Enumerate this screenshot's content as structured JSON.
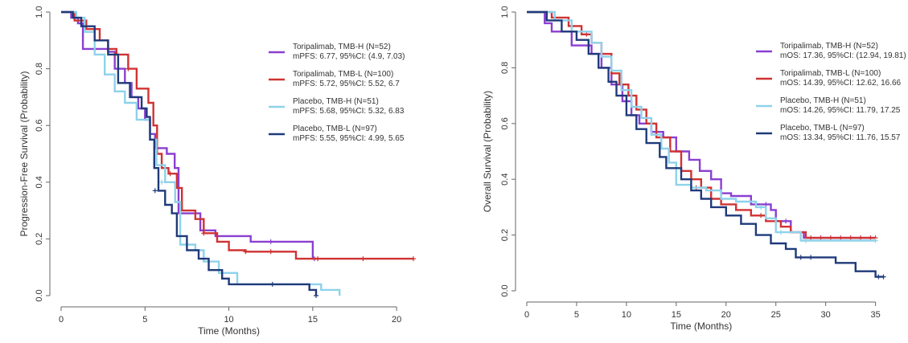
{
  "chart_data": [
    {
      "type": "line",
      "subtype": "kaplan-meier",
      "title": "",
      "xlabel": "Time (Months)",
      "ylabel": "Progression-Free Survival (Probability)",
      "xlim": [
        0,
        21
      ],
      "ylim": [
        0,
        1
      ],
      "xticks": [
        0,
        5,
        10,
        15,
        20
      ],
      "yticks": [
        0.0,
        0.2,
        0.4,
        0.6,
        0.8,
        1.0
      ],
      "xtick_labels": [
        "0",
        "5",
        "10",
        "15",
        "20"
      ],
      "ytick_labels": [
        "0.0",
        "0.2",
        "0.4",
        "0.6",
        "0.8",
        "1.0"
      ],
      "legend_position": "right",
      "series": [
        {
          "name": "Toripalimab, TMB-H (N=52)",
          "stat": "mPFS: 6.77, 95%CI: (4.9, 7.03)",
          "color": "#8a3fd1",
          "steps": [
            [
              0,
              1.0
            ],
            [
              0.6,
              0.98
            ],
            [
              1.0,
              0.96
            ],
            [
              1.3,
              0.87
            ],
            [
              2.8,
              0.86
            ],
            [
              3.2,
              0.8
            ],
            [
              3.8,
              0.75
            ],
            [
              4.2,
              0.7
            ],
            [
              4.6,
              0.66
            ],
            [
              5.0,
              0.62
            ],
            [
              5.3,
              0.57
            ],
            [
              5.6,
              0.52
            ],
            [
              6.3,
              0.5
            ],
            [
              6.77,
              0.45
            ],
            [
              7.0,
              0.29
            ],
            [
              8.3,
              0.23
            ],
            [
              9.2,
              0.21
            ],
            [
              11.3,
              0.19
            ],
            [
              15.0,
              0.13
            ],
            [
              15.2,
              0.13
            ]
          ],
          "censors": [
            [
              12.5,
              0.19
            ],
            [
              15.1,
              0.13
            ]
          ]
        },
        {
          "name": "Toripalimab, TMB-L (N=100)",
          "stat": "mPFS: 5.72, 95%CI: 5.52, 6.7",
          "color": "#d03232",
          "steps": [
            [
              0,
              1.0
            ],
            [
              0.8,
              0.97
            ],
            [
              1.5,
              0.94
            ],
            [
              2.3,
              0.9
            ],
            [
              2.8,
              0.87
            ],
            [
              3.3,
              0.85
            ],
            [
              4.0,
              0.8
            ],
            [
              4.5,
              0.73
            ],
            [
              5.2,
              0.68
            ],
            [
              5.5,
              0.6
            ],
            [
              5.72,
              0.5
            ],
            [
              6.0,
              0.45
            ],
            [
              6.4,
              0.43
            ],
            [
              6.9,
              0.38
            ],
            [
              7.2,
              0.3
            ],
            [
              8.0,
              0.27
            ],
            [
              8.5,
              0.22
            ],
            [
              9.3,
              0.19
            ],
            [
              10.0,
              0.16
            ],
            [
              11.0,
              0.155
            ],
            [
              14.0,
              0.13
            ],
            [
              21.0,
              0.13
            ]
          ],
          "censors": [
            [
              3.2,
              0.85
            ],
            [
              4.0,
              0.8
            ],
            [
              6.5,
              0.43
            ],
            [
              8.5,
              0.22
            ],
            [
              11.0,
              0.155
            ],
            [
              12.5,
              0.155
            ],
            [
              15.3,
              0.13
            ],
            [
              18.0,
              0.13
            ],
            [
              21.0,
              0.13
            ]
          ]
        },
        {
          "name": "Placebo, TMB-H (N=51)",
          "stat": "mPFS: 5.68, 95%CI: 5.32, 6.83",
          "color": "#8ed2ea",
          "steps": [
            [
              0,
              1.0
            ],
            [
              0.9,
              0.98
            ],
            [
              1.4,
              0.93
            ],
            [
              2.0,
              0.85
            ],
            [
              2.6,
              0.78
            ],
            [
              3.2,
              0.72
            ],
            [
              3.8,
              0.68
            ],
            [
              4.5,
              0.62
            ],
            [
              5.3,
              0.55
            ],
            [
              5.68,
              0.46
            ],
            [
              6.2,
              0.4
            ],
            [
              6.8,
              0.33
            ],
            [
              7.1,
              0.18
            ],
            [
              8.0,
              0.16
            ],
            [
              8.5,
              0.12
            ],
            [
              9.4,
              0.08
            ],
            [
              10.5,
              0.04
            ],
            [
              12.0,
              0.04
            ],
            [
              15.5,
              0.02
            ],
            [
              16.6,
              0.0
            ]
          ],
          "censors": [
            [
              6.0,
              0.4
            ]
          ]
        },
        {
          "name": "Placebo, TMB-L (N=97)",
          "stat": "mPFS: 5.55, 95%CI: 4.99, 5.65",
          "color": "#1f3a7a",
          "steps": [
            [
              0,
              1.0
            ],
            [
              0.7,
              0.98
            ],
            [
              1.2,
              0.95
            ],
            [
              2.0,
              0.9
            ],
            [
              2.8,
              0.85
            ],
            [
              3.4,
              0.75
            ],
            [
              4.1,
              0.7
            ],
            [
              4.8,
              0.66
            ],
            [
              5.1,
              0.63
            ],
            [
              5.3,
              0.55
            ],
            [
              5.55,
              0.45
            ],
            [
              5.8,
              0.37
            ],
            [
              6.2,
              0.32
            ],
            [
              6.6,
              0.29
            ],
            [
              6.9,
              0.21
            ],
            [
              7.5,
              0.16
            ],
            [
              8.2,
              0.13
            ],
            [
              8.8,
              0.09
            ],
            [
              9.6,
              0.06
            ],
            [
              10.0,
              0.04
            ],
            [
              12.5,
              0.04
            ],
            [
              14.8,
              0.02
            ],
            [
              15.2,
              0.0
            ]
          ],
          "censors": [
            [
              5.6,
              0.37
            ],
            [
              12.6,
              0.04
            ],
            [
              15.2,
              0.0
            ]
          ]
        }
      ]
    },
    {
      "type": "line",
      "subtype": "kaplan-meier",
      "title": "",
      "xlabel": "Time (Months)",
      "ylabel": "Overall Survival (Probability)",
      "xlim": [
        0,
        36
      ],
      "ylim": [
        0,
        1
      ],
      "xticks": [
        0,
        5,
        10,
        15,
        20,
        25,
        30,
        35
      ],
      "yticks": [
        0.0,
        0.2,
        0.4,
        0.6,
        0.8,
        1.0
      ],
      "xtick_labels": [
        "0",
        "5",
        "10",
        "15",
        "20",
        "25",
        "30",
        "35"
      ],
      "ytick_labels": [
        "0.0",
        "0.2",
        "0.4",
        "0.6",
        "0.8",
        "1.0"
      ],
      "legend_position": "right",
      "series": [
        {
          "name": "Toripalimab, TMB-H (N=52)",
          "stat": "mOS: 17.36, 95%CI: (12.94, 19.81)",
          "color": "#8a3fd1",
          "steps": [
            [
              0,
              1.0
            ],
            [
              1.8,
              0.96
            ],
            [
              2.5,
              0.93
            ],
            [
              4.5,
              0.88
            ],
            [
              6.5,
              0.85
            ],
            [
              7.5,
              0.8
            ],
            [
              8.5,
              0.74
            ],
            [
              9.6,
              0.68
            ],
            [
              10.5,
              0.63
            ],
            [
              11.3,
              0.6
            ],
            [
              12.5,
              0.57
            ],
            [
              13.7,
              0.55
            ],
            [
              15.0,
              0.5
            ],
            [
              16.3,
              0.47
            ],
            [
              17.36,
              0.43
            ],
            [
              18.5,
              0.4
            ],
            [
              19.5,
              0.35
            ],
            [
              20.5,
              0.34
            ],
            [
              22.5,
              0.31
            ],
            [
              24.5,
              0.29
            ],
            [
              25.0,
              0.25
            ],
            [
              26.5,
              0.21
            ],
            [
              27.8,
              0.19
            ],
            [
              35.0,
              0.19
            ]
          ],
          "censors": [
            [
              23.0,
              0.31
            ],
            [
              24.0,
              0.31
            ],
            [
              26.0,
              0.25
            ]
          ]
        },
        {
          "name": "Toripalimab, TMB-L (N=100)",
          "stat": "mOS: 14.39, 95%CI: 12.62, 16.66",
          "color": "#d03232",
          "steps": [
            [
              0,
              1.0
            ],
            [
              2.5,
              0.98
            ],
            [
              4.2,
              0.95
            ],
            [
              5.5,
              0.92
            ],
            [
              6.5,
              0.89
            ],
            [
              7.5,
              0.85
            ],
            [
              8.5,
              0.78
            ],
            [
              9.3,
              0.74
            ],
            [
              10.2,
              0.7
            ],
            [
              11.0,
              0.65
            ],
            [
              12.0,
              0.6
            ],
            [
              13.0,
              0.55
            ],
            [
              14.39,
              0.5
            ],
            [
              15.5,
              0.43
            ],
            [
              16.5,
              0.4
            ],
            [
              17.5,
              0.37
            ],
            [
              18.5,
              0.33
            ],
            [
              19.5,
              0.31
            ],
            [
              21.0,
              0.29
            ],
            [
              22.5,
              0.27
            ],
            [
              24.0,
              0.25
            ],
            [
              25.5,
              0.23
            ],
            [
              26.5,
              0.21
            ],
            [
              28.0,
              0.19
            ],
            [
              35.0,
              0.19
            ]
          ],
          "censors": [
            [
              6.0,
              0.92
            ],
            [
              17.0,
              0.37
            ],
            [
              23.5,
              0.27
            ],
            [
              25.0,
              0.25
            ],
            [
              28.5,
              0.19
            ],
            [
              29.5,
              0.19
            ],
            [
              30.5,
              0.19
            ],
            [
              31.5,
              0.19
            ],
            [
              32.5,
              0.19
            ],
            [
              33.5,
              0.19
            ],
            [
              34.5,
              0.19
            ],
            [
              35.0,
              0.19
            ]
          ]
        },
        {
          "name": "Placebo, TMB-H (N=51)",
          "stat": "mOS: 14.26, 95%CI: 11.79, 17.25",
          "color": "#8ed2ea",
          "steps": [
            [
              0,
              1.0
            ],
            [
              2.8,
              0.97
            ],
            [
              4.5,
              0.93
            ],
            [
              6.5,
              0.89
            ],
            [
              7.5,
              0.84
            ],
            [
              8.5,
              0.79
            ],
            [
              9.5,
              0.72
            ],
            [
              10.5,
              0.66
            ],
            [
              11.5,
              0.62
            ],
            [
              12.5,
              0.56
            ],
            [
              13.5,
              0.51
            ],
            [
              14.26,
              0.46
            ],
            [
              15.0,
              0.38
            ],
            [
              16.5,
              0.37
            ],
            [
              18.0,
              0.36
            ],
            [
              19.5,
              0.33
            ],
            [
              21.0,
              0.32
            ],
            [
              23.0,
              0.3
            ],
            [
              24.0,
              0.26
            ],
            [
              25.0,
              0.21
            ],
            [
              27.5,
              0.18
            ],
            [
              35.0,
              0.18
            ]
          ],
          "censors": [
            [
              23.5,
              0.3
            ],
            [
              25.5,
              0.21
            ],
            [
              28.0,
              0.18
            ],
            [
              35.0,
              0.18
            ]
          ]
        },
        {
          "name": "Placebo, TMB-L (N=97)",
          "stat": "mOS: 13.34, 95%CI: 11.76, 15.57",
          "color": "#1f3a7a",
          "steps": [
            [
              0,
              1.0
            ],
            [
              2.0,
              0.97
            ],
            [
              3.5,
              0.93
            ],
            [
              5.0,
              0.9
            ],
            [
              6.2,
              0.85
            ],
            [
              7.2,
              0.8
            ],
            [
              8.2,
              0.75
            ],
            [
              9.0,
              0.7
            ],
            [
              10.0,
              0.63
            ],
            [
              11.0,
              0.58
            ],
            [
              12.0,
              0.53
            ],
            [
              13.34,
              0.48
            ],
            [
              14.0,
              0.44
            ],
            [
              15.5,
              0.4
            ],
            [
              16.5,
              0.36
            ],
            [
              17.5,
              0.33
            ],
            [
              18.5,
              0.3
            ],
            [
              20.0,
              0.27
            ],
            [
              21.5,
              0.24
            ],
            [
              23.0,
              0.2
            ],
            [
              24.5,
              0.17
            ],
            [
              26.0,
              0.15
            ],
            [
              27.0,
              0.12
            ],
            [
              31.0,
              0.1
            ],
            [
              33.0,
              0.07
            ],
            [
              35.0,
              0.05
            ],
            [
              35.8,
              0.05
            ]
          ],
          "censors": [
            [
              27.5,
              0.12
            ],
            [
              28.5,
              0.12
            ],
            [
              35.3,
              0.05
            ],
            [
              35.8,
              0.05
            ]
          ]
        }
      ]
    }
  ]
}
